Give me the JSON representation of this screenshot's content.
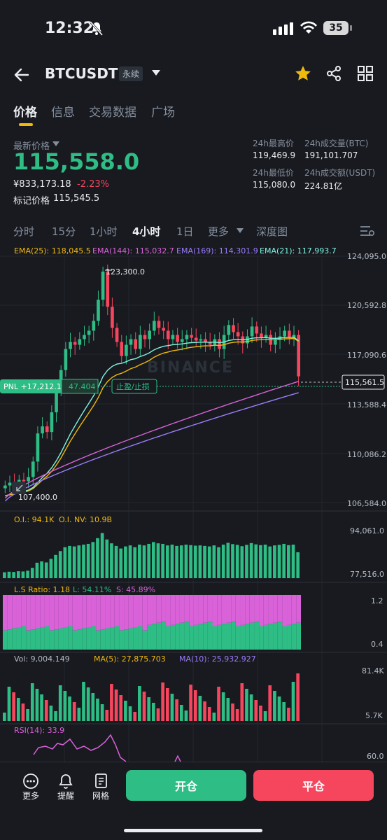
{
  "status_bar": {
    "time": "12:32",
    "battery": "35"
  },
  "header": {
    "symbol": "BTCUSDT",
    "contract_type": "永续"
  },
  "tabs": [
    {
      "label": "价格",
      "active": true
    },
    {
      "label": "信息",
      "active": false
    },
    {
      "label": "交易数据",
      "active": false
    },
    {
      "label": "广场",
      "active": false
    }
  ],
  "price": {
    "latest_label": "最新价格",
    "latest": "115,558.0",
    "cny": "¥833,173.18",
    "change": "-2.23%",
    "mark_label": "标记价格",
    "mark": "115,545.5"
  },
  "stats": {
    "high_label": "24h最高价",
    "high": "119,469.9",
    "vol_btc_label": "24h成交量(BTC)",
    "vol_btc": "191,101.707",
    "low_label": "24h最低价",
    "low": "115,080.0",
    "vol_usdt_label": "24h成交额(USDT)",
    "vol_usdt": "224.81亿"
  },
  "intervals": [
    {
      "label": "分时",
      "active": false
    },
    {
      "label": "15分",
      "active": false
    },
    {
      "label": "1小时",
      "active": false
    },
    {
      "label": "4小时",
      "active": true
    },
    {
      "label": "1日",
      "active": false
    },
    {
      "label": "更多",
      "active": false
    },
    {
      "label": "深度图",
      "active": false
    }
  ],
  "indicators": {
    "ema25": "EMA(25): 118,045.5",
    "ema144": "EMA(144): 115,032.7",
    "ema169": "EMA(169): 114,301.9",
    "ema21": "EMA(21): 117,993.7"
  },
  "price_axis": [
    "124,095.0",
    "120,592.8",
    "117,090.6",
    "113,588.4",
    "110,086.2",
    "106,584.0"
  ],
  "current_price_tag": "115,561.5",
  "pnl": {
    "label": "PNL +17,212.16",
    "qty": "47.404",
    "tpsl": "止盈/止损"
  },
  "annotations": {
    "high": "123,300.0",
    "low": "107,400.0"
  },
  "watermark": "BINANCE",
  "oi": {
    "oi": "O.I.: 94.1K",
    "nv": "O.I. NV: 10.9B",
    "axis_top": "94,061.0",
    "axis_bottom": "77,516.0"
  },
  "ls": {
    "ratio": "L.S Ratio: 1.18",
    "long": "L: 54.11%",
    "short": "S: 45.89%",
    "axis_top": "1.2",
    "axis_bottom": "0.4"
  },
  "vol": {
    "vol": "Vol: 9,004.149",
    "ma5": "MA(5): 27,875.703",
    "ma10": "MA(10): 25,932.927",
    "axis_top": "81.4K",
    "axis_bottom": "5.7K"
  },
  "rsi": {
    "label": "RSI(14): 33.9",
    "axis": "60.0"
  },
  "bottom_nav": [
    {
      "label": "更多",
      "icon": "more-icon"
    },
    {
      "label": "提醒",
      "icon": "bell-icon"
    },
    {
      "label": "网格",
      "icon": "grid-doc-icon"
    }
  ],
  "actions": {
    "open": "开仓",
    "close": "平仓"
  },
  "colors": {
    "up": "#2ebd85",
    "down": "#f6465d",
    "accent": "#f0b90b",
    "bg": "#181a20"
  },
  "chart_data": {
    "type": "candlestick",
    "interval": "4小时",
    "y_range": [
      106584.0,
      124095.0
    ],
    "close_series_estimate": [
      107800,
      108000,
      107900,
      108200,
      108100,
      108400,
      109500,
      111500,
      112000,
      111600,
      113000,
      114500,
      116000,
      117500,
      118000,
      117800,
      118200,
      118500,
      118800,
      119500,
      121000,
      123000,
      120500,
      119000,
      118000,
      117000,
      117800,
      118200,
      117500,
      118500,
      118200,
      118800,
      119500,
      119000,
      118800,
      118200,
      118500,
      118000,
      118200,
      118500,
      118300,
      118100,
      118200,
      118000,
      117800,
      118200,
      117500,
      118500,
      119200,
      118700,
      118400,
      117900,
      118400,
      119100,
      118600,
      118300,
      118500,
      117800,
      118200,
      118400,
      118800,
      118300,
      118500,
      115558
    ]
  }
}
